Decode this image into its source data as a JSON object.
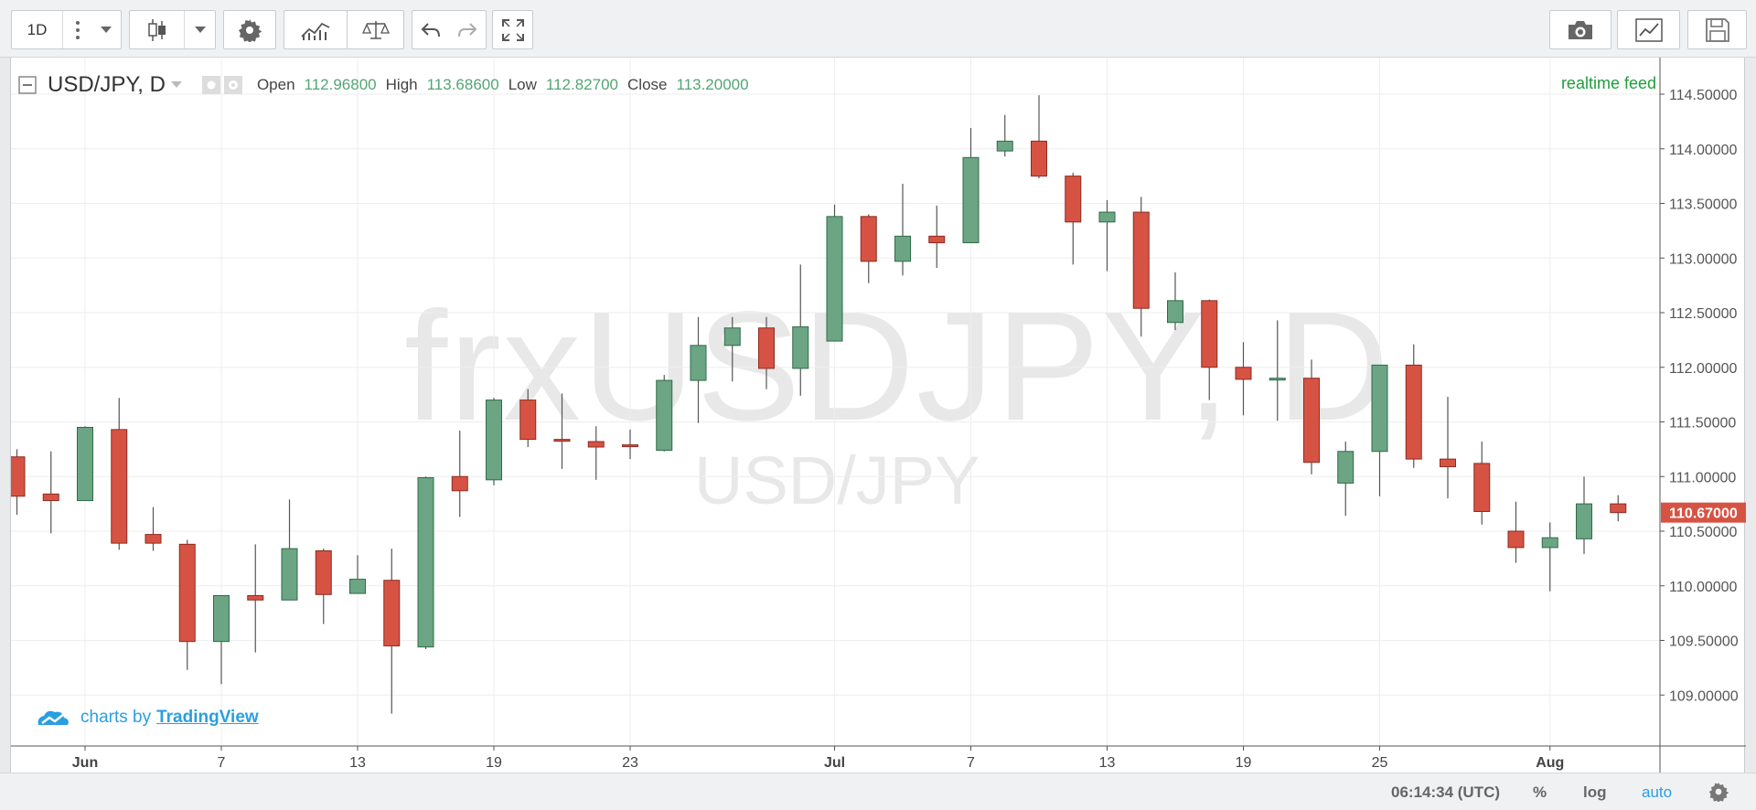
{
  "toolbar": {
    "interval": "1D",
    "icons": [
      "more-icon",
      "dropdown-icon",
      "candles-icon",
      "dropdown-icon",
      "settings-gear-icon",
      "indicators-icon",
      "compare-icon",
      "undo-icon",
      "redo-icon",
      "fullscreen-icon",
      "camera-icon",
      "chart-template-icon",
      "save-icon"
    ]
  },
  "legend": {
    "symbol": "USD/JPY, D",
    "open_label": "Open",
    "open": "112.96800",
    "high_label": "High",
    "high": "113.68600",
    "low_label": "Low",
    "low": "112.82700",
    "close_label": "Close",
    "close": "113.20000"
  },
  "realtime_label": "realtime feed",
  "watermark": {
    "main": "frxUSDJPY, D",
    "sub": "USD/JPY"
  },
  "branding": {
    "prefix": "charts by",
    "link": "TradingView"
  },
  "bottombar": {
    "time": "06:14:34 (UTC)",
    "percent": "%",
    "log": "log",
    "auto": "auto"
  },
  "colors": {
    "up": "#6ca583",
    "down": "#d65344",
    "price_tag": "#d65344",
    "auto_active": "#2a9fe0"
  },
  "chart_data": {
    "type": "candlestick",
    "symbol": "USD/JPY",
    "interval": "D",
    "last_price": "110.67000",
    "ylim": [
      108.45,
      114.75
    ],
    "y_ticks": [
      109.0,
      109.5,
      110.0,
      110.5,
      111.0,
      111.5,
      112.0,
      112.5,
      113.0,
      113.5,
      114.0,
      114.5
    ],
    "y_tick_labels": [
      "109.00000",
      "109.50000",
      "110.00000",
      "110.50000",
      "111.00000",
      "111.50000",
      "112.00000",
      "112.50000",
      "113.00000",
      "113.50000",
      "114.00000",
      "114.50000"
    ],
    "x_ticks": [
      {
        "label": "Jun",
        "index": 2,
        "bold": true
      },
      {
        "label": "7",
        "index": 6,
        "bold": false
      },
      {
        "label": "13",
        "index": 10,
        "bold": false
      },
      {
        "label": "19",
        "index": 14,
        "bold": false
      },
      {
        "label": "23",
        "index": 18,
        "bold": false
      },
      {
        "label": "Jul",
        "index": 24,
        "bold": true
      },
      {
        "label": "7",
        "index": 28,
        "bold": false
      },
      {
        "label": "13",
        "index": 32,
        "bold": false
      },
      {
        "label": "19",
        "index": 36,
        "bold": false
      },
      {
        "label": "25",
        "index": 40,
        "bold": false
      },
      {
        "label": "Aug",
        "index": 45,
        "bold": true
      }
    ],
    "candles": [
      {
        "o": 111.18,
        "h": 111.25,
        "l": 110.65,
        "c": 110.82
      },
      {
        "o": 110.84,
        "h": 111.23,
        "l": 110.48,
        "c": 110.78
      },
      {
        "o": 110.78,
        "h": 111.46,
        "l": 110.78,
        "c": 111.45
      },
      {
        "o": 111.43,
        "h": 111.72,
        "l": 110.33,
        "c": 110.39
      },
      {
        "o": 110.47,
        "h": 110.72,
        "l": 110.32,
        "c": 110.39
      },
      {
        "o": 110.38,
        "h": 110.42,
        "l": 109.23,
        "c": 109.49
      },
      {
        "o": 109.49,
        "h": 109.91,
        "l": 109.1,
        "c": 109.91
      },
      {
        "o": 109.91,
        "h": 110.38,
        "l": 109.39,
        "c": 109.87
      },
      {
        "o": 109.87,
        "h": 110.79,
        "l": 109.87,
        "c": 110.34
      },
      {
        "o": 110.32,
        "h": 110.34,
        "l": 109.65,
        "c": 109.92
      },
      {
        "o": 109.93,
        "h": 110.28,
        "l": 109.93,
        "c": 110.06
      },
      {
        "o": 110.05,
        "h": 110.34,
        "l": 108.83,
        "c": 109.45
      },
      {
        "o": 109.44,
        "h": 111.0,
        "l": 109.42,
        "c": 110.99
      },
      {
        "o": 111.0,
        "h": 111.42,
        "l": 110.63,
        "c": 110.87
      },
      {
        "o": 110.97,
        "h": 111.72,
        "l": 110.92,
        "c": 111.7
      },
      {
        "o": 111.7,
        "h": 111.8,
        "l": 111.27,
        "c": 111.34
      },
      {
        "o": 111.34,
        "h": 111.76,
        "l": 111.07,
        "c": 111.33
      },
      {
        "o": 111.32,
        "h": 111.46,
        "l": 110.97,
        "c": 111.27
      },
      {
        "o": 111.29,
        "h": 111.43,
        "l": 111.16,
        "c": 111.28
      },
      {
        "o": 111.24,
        "h": 111.93,
        "l": 111.23,
        "c": 111.88
      },
      {
        "o": 111.88,
        "h": 112.46,
        "l": 111.49,
        "c": 112.2
      },
      {
        "o": 112.2,
        "h": 112.46,
        "l": 111.87,
        "c": 112.36
      },
      {
        "o": 112.36,
        "h": 112.46,
        "l": 111.8,
        "c": 111.99
      },
      {
        "o": 111.99,
        "h": 112.94,
        "l": 111.74,
        "c": 112.37
      },
      {
        "o": 112.24,
        "h": 113.49,
        "l": 112.24,
        "c": 113.38
      },
      {
        "o": 113.38,
        "h": 113.4,
        "l": 112.77,
        "c": 112.97
      },
      {
        "o": 112.97,
        "h": 113.68,
        "l": 112.84,
        "c": 113.2
      },
      {
        "o": 113.2,
        "h": 113.48,
        "l": 112.91,
        "c": 113.14
      },
      {
        "o": 113.14,
        "h": 114.19,
        "l": 113.14,
        "c": 113.92
      },
      {
        "o": 113.98,
        "h": 114.31,
        "l": 113.93,
        "c": 114.07
      },
      {
        "o": 114.07,
        "h": 114.49,
        "l": 113.73,
        "c": 113.75
      },
      {
        "o": 113.75,
        "h": 113.78,
        "l": 112.94,
        "c": 113.33
      },
      {
        "o": 113.33,
        "h": 113.53,
        "l": 112.88,
        "c": 113.42
      },
      {
        "o": 113.42,
        "h": 113.56,
        "l": 112.28,
        "c": 112.54
      },
      {
        "o": 112.41,
        "h": 112.87,
        "l": 112.34,
        "c": 112.61
      },
      {
        "o": 112.61,
        "h": 112.62,
        "l": 111.7,
        "c": 112.0
      },
      {
        "o": 112.0,
        "h": 112.23,
        "l": 111.56,
        "c": 111.89
      },
      {
        "o": 111.89,
        "h": 112.43,
        "l": 111.51,
        "c": 111.9
      },
      {
        "o": 111.9,
        "h": 112.07,
        "l": 111.02,
        "c": 111.13
      },
      {
        "o": 110.94,
        "h": 111.32,
        "l": 110.64,
        "c": 111.23
      },
      {
        "o": 111.23,
        "h": 112.02,
        "l": 110.82,
        "c": 112.02
      },
      {
        "o": 112.02,
        "h": 112.21,
        "l": 111.08,
        "c": 111.16
      },
      {
        "o": 111.16,
        "h": 111.73,
        "l": 110.8,
        "c": 111.09
      },
      {
        "o": 111.12,
        "h": 111.32,
        "l": 110.56,
        "c": 110.68
      },
      {
        "o": 110.5,
        "h": 110.77,
        "l": 110.21,
        "c": 110.35
      },
      {
        "o": 110.35,
        "h": 110.58,
        "l": 109.95,
        "c": 110.44
      },
      {
        "o": 110.43,
        "h": 111.0,
        "l": 110.29,
        "c": 110.75
      },
      {
        "o": 110.75,
        "h": 110.83,
        "l": 110.59,
        "c": 110.67
      }
    ]
  }
}
